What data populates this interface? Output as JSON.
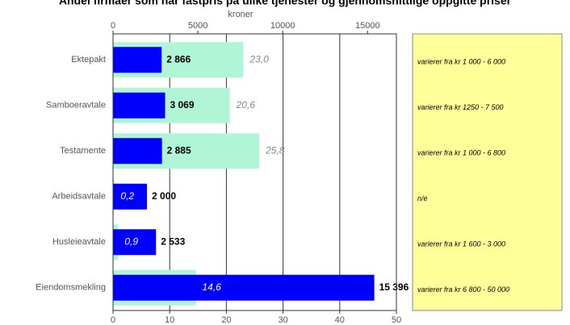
{
  "chart_data": {
    "type": "bar",
    "orientation": "horizontal",
    "title": "Andel firmaer som har fastpris på ulike tjenester  og gjennomsnittlige oppgitte priser",
    "x2_label": "kroner",
    "categories": [
      "Ektepakt",
      "Samboeravtale",
      "Testamente",
      "Arbeidsavtale",
      "Husleieavtale",
      "Eiendomsmekling"
    ],
    "series": [
      {
        "name": "kroner",
        "axis": "x2",
        "color": "#0000ff",
        "values": [
          2866,
          3069,
          2885,
          2000,
          2533,
          15396
        ],
        "value_labels": [
          "2 866",
          "3 069",
          "2 885",
          "2 000",
          "2 533",
          "15 396"
        ]
      },
      {
        "name": "andel",
        "axis": "x",
        "color": "#b0f5d6",
        "values": [
          23.0,
          20.6,
          25.8,
          0.2,
          0.9,
          14.6
        ],
        "value_labels": [
          "23,0",
          "20,6",
          "25,8",
          "0,2",
          "0,9",
          "14,6"
        ]
      }
    ],
    "xlim": [
      0,
      50
    ],
    "xticks": [
      0,
      10,
      20,
      30,
      40,
      50
    ],
    "x2lim": [
      0,
      16700
    ],
    "x2ticks": [
      0,
      5000,
      10000,
      15000
    ],
    "grid": true,
    "notes": [
      "varierer fra  kr 1 000 - 6 000",
      "varierer fra kr 1250 - 7 500",
      "varierer fra kr 1 000 - 6 800",
      "n/e",
      "varierer fra kr 1 600 - 3 000",
      "varierer fra kr  6 800 - 50 000"
    ]
  }
}
